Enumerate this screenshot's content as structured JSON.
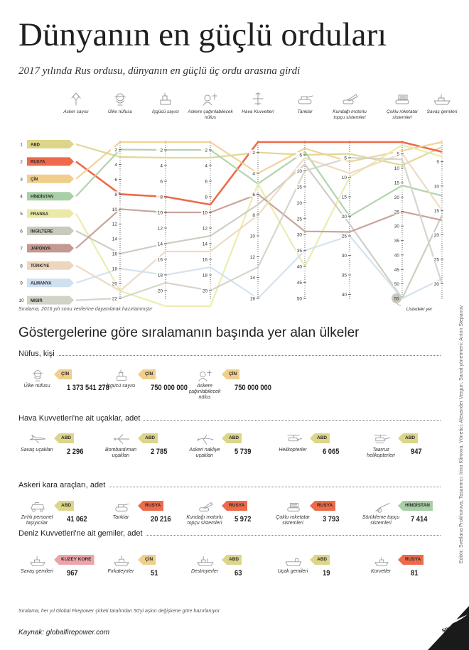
{
  "title": "Dünyanın en güçlü orduları",
  "subtitle": "2017 yılında Rus ordusu, dünyanın en güçlü üç ordu arasına girdi",
  "chart_data": {
    "type": "parallel-coordinates",
    "countries": [
      {
        "rank": "1",
        "name": "ABD",
        "color": "#ddd58a"
      },
      {
        "rank": "2",
        "name": "RUSYA",
        "color": "#ee6a4a"
      },
      {
        "rank": "3",
        "name": "ÇİN",
        "color": "#f0ce8c"
      },
      {
        "rank": "4",
        "name": "HİNDİSTAN",
        "color": "#a8cfa6"
      },
      {
        "rank": "5",
        "name": "FRANSA",
        "color": "#eaeaa6"
      },
      {
        "rank": "6",
        "name": "İNGİLTERE",
        "color": "#c9c9bd"
      },
      {
        "rank": "7",
        "name": "JAPONYA",
        "color": "#c49a90"
      },
      {
        "rank": "8",
        "name": "TÜRKİYE",
        "color": "#ecd7bd"
      },
      {
        "rank": "9",
        "name": "ALMANYA",
        "color": "#cfe0f0"
      },
      {
        "rank": "10",
        "name": "MISIR",
        "color": "#d2d2c6"
      }
    ],
    "axes": [
      {
        "label": "Asker sayısı",
        "icon": "soldier-icon",
        "ticks": [],
        "min": 1,
        "max": 10
      },
      {
        "label": "Ülke nüfusu",
        "icon": "population-icon",
        "ticks": [
          "2",
          "4",
          "6",
          "8",
          "10",
          "12",
          "14",
          "16",
          "18",
          "20",
          "22"
        ],
        "min": 1,
        "max": 22
      },
      {
        "label": "İşgücü sayısı",
        "icon": "workforce-icon",
        "ticks": [
          "2",
          "4",
          "6",
          "8",
          "10",
          "12",
          "14",
          "16",
          "18",
          "20"
        ],
        "min": 1,
        "max": 21
      },
      {
        "label": "Askere çağırılabilecek nüfus",
        "icon": "conscription-icon",
        "ticks": [
          "2",
          "4",
          "6",
          "8",
          "10",
          "12",
          "14",
          "16",
          "18",
          "20"
        ],
        "min": 1,
        "max": 21
      },
      {
        "label": "Hava Kuvvetleri",
        "icon": "air-force-icon",
        "ticks": [
          "2",
          "4",
          "6",
          "8",
          "10",
          "12",
          "14",
          "16"
        ],
        "min": 1,
        "max": 16
      },
      {
        "label": "Tanklar",
        "icon": "tank-icon",
        "ticks": [
          "5",
          "10",
          "15",
          "20",
          "25",
          "30",
          "35",
          "40",
          "45",
          "50"
        ],
        "min": 1,
        "max": 50
      },
      {
        "label": "Kundağı motorlu topçu sistemleri",
        "icon": "self-propelled-artillery-icon",
        "ticks": [
          "5",
          "10",
          "15",
          "20",
          "25",
          "30",
          "35",
          "40"
        ],
        "min": 1,
        "max": 41
      },
      {
        "label": "Çoklu roketatar sistemleri",
        "icon": "rocket-launcher-icon",
        "ticks": [
          "5",
          "10",
          "15",
          "20",
          "25",
          "30",
          "35",
          "40",
          "45",
          "50"
        ],
        "min": 1,
        "max": 55
      },
      {
        "label": "Savaş gemileri",
        "icon": "warship-icon",
        "ticks": [
          "5",
          "10",
          "15",
          "20",
          "25",
          "30"
        ],
        "min": 1,
        "max": 33
      }
    ],
    "series": [
      {
        "name": "ABD",
        "values": [
          1,
          3,
          3,
          3,
          2,
          5,
          4,
          9,
          2
        ]
      },
      {
        "name": "RUSYA",
        "values": [
          2,
          8,
          8,
          9,
          1,
          1,
          1,
          1,
          3
        ]
      },
      {
        "name": "ÇİN",
        "values": [
          3,
          1,
          1,
          1,
          4,
          3,
          6,
          4,
          1
        ]
      },
      {
        "name": "HİNDİSTAN",
        "values": [
          4,
          2,
          2,
          2,
          5,
          4,
          20,
          16,
          12
        ]
      },
      {
        "name": "FRANSA",
        "values": [
          5,
          21,
          22,
          22,
          5,
          40,
          10,
          2,
          4
        ]
      },
      {
        "name": "İNGİLTERE",
        "values": [
          6,
          16,
          14,
          13,
          7,
          8,
          22,
          55,
          16
        ]
      },
      {
        "name": "JAPONYA",
        "values": [
          7,
          10,
          10,
          10,
          6,
          29,
          24,
          25,
          17
        ]
      },
      {
        "name": "TÜRKİYE",
        "values": [
          8,
          21,
          15,
          15,
          8,
          6,
          9,
          5,
          15
        ]
      },
      {
        "name": "ALMANYA",
        "values": [
          9,
          18,
          18,
          17,
          16,
          35,
          25,
          55,
          29
        ]
      },
      {
        "name": "MISIR",
        "values": [
          10,
          22,
          19,
          20,
          13,
          10,
          5,
          7,
          30
        ]
      }
    ],
    "rank_label": "55",
    "rank_note": "Listedeki yer",
    "note": "Sıralama, 2016 yılı sonu verilerine dayanılarak hazırlanmıştır"
  },
  "section_heading": "Göstergelerine göre sıralamanın başında yer alan ülkeler",
  "groups": [
    {
      "title": "Nüfus, kişi",
      "items": [
        {
          "label": "Ülke nüfusu",
          "value": "1 373 541 278",
          "country": "ÇİN",
          "icon": "population-icon",
          "tag_color": "#f0ce8c"
        },
        {
          "label": "İşgücü sayısı",
          "value": "750 000 000",
          "country": "ÇİN",
          "icon": "workforce-icon",
          "tag_color": "#f0ce8c"
        },
        {
          "label": "Askere çağırılabilecek nüfus",
          "value": "750 000 000",
          "country": "ÇİN",
          "icon": "conscription-icon",
          "tag_color": "#f0ce8c"
        }
      ]
    },
    {
      "title": "Hava Kuvvetleri'ne ait uçaklar, adet",
      "items": [
        {
          "label": "Savaş uçakları",
          "value": "2 296",
          "country": "ABD",
          "icon": "fighter-jet-icon",
          "tag_color": "#ddd58a"
        },
        {
          "label": "Bombardıman uçakları",
          "value": "2 785",
          "country": "ABD",
          "icon": "bomber-icon",
          "tag_color": "#ddd58a"
        },
        {
          "label": "Askeri nakliye uçakları",
          "value": "5 739",
          "country": "ABD",
          "icon": "transport-plane-icon",
          "tag_color": "#ddd58a"
        },
        {
          "label": "Helikopterler",
          "value": "6 065",
          "country": "ABD",
          "icon": "helicopter-icon",
          "tag_color": "#ddd58a"
        },
        {
          "label": "Taarruz helikopterleri",
          "value": "947",
          "country": "ABD",
          "icon": "attack-helicopter-icon",
          "tag_color": "#ddd58a"
        }
      ]
    },
    {
      "title": "Askeri kara araçları, adet",
      "items": [
        {
          "label": "Zırhlı personel taşıyıcılar",
          "value": "41 062",
          "country": "ABD",
          "icon": "armored-carrier-icon",
          "tag_color": "#ddd58a"
        },
        {
          "label": "Tanklar",
          "value": "20 216",
          "country": "RUSYA",
          "icon": "tank-icon",
          "tag_color": "#ee6a4a"
        },
        {
          "label": "Kundağı motorlu topçu sistemleri",
          "value": "5 972",
          "country": "RUSYA",
          "icon": "self-propelled-artillery-icon",
          "tag_color": "#ee6a4a"
        },
        {
          "label": "Çoklu roketatar sistemleri",
          "value": "3 793",
          "country": "RUSYA",
          "icon": "rocket-launcher-icon",
          "tag_color": "#ee6a4a"
        },
        {
          "label": "Sürükleme topçu sistemleri",
          "value": "7 414",
          "country": "HİNDİSTAN",
          "icon": "towed-artillery-icon",
          "tag_color": "#a8cfa6"
        }
      ]
    },
    {
      "title": "Deniz Kuvvetleri'ne ait gemiler, adet",
      "items": [
        {
          "label": "Savaş gemileri",
          "value": "967",
          "country": "KUZEY KORE",
          "icon": "warship-icon",
          "tag_color": "#eca4a8"
        },
        {
          "label": "Fırkateynler",
          "value": "51",
          "country": "ÇİN",
          "icon": "frigate-icon",
          "tag_color": "#f0ce8c"
        },
        {
          "label": "Destroyerler",
          "value": "63",
          "country": "ABD",
          "icon": "destroyer-icon",
          "tag_color": "#ddd58a"
        },
        {
          "label": "Uçak gemileri",
          "value": "19",
          "country": "ABD",
          "icon": "aircraft-carrier-icon",
          "tag_color": "#ddd58a"
        },
        {
          "label": "Korvetler",
          "value": "81",
          "country": "RUSYA",
          "icon": "corvette-icon",
          "tag_color": "#ee6a4a"
        }
      ]
    }
  ],
  "bottom_note": "Sıralama, her yıl Global Firepower şirketi tarafından 50'yi aşkın değişkene göre hazırlanıyor",
  "source": "Kaynak: globalfirepower.com",
  "credits": "Editör: Svetlana Prokhorova, Tasarımcı: İrina Klimova, Yönetici: Alexander Vergun, Sanat yönetmeni: Anton Stepanov",
  "logo_text": "SPUTNIK"
}
